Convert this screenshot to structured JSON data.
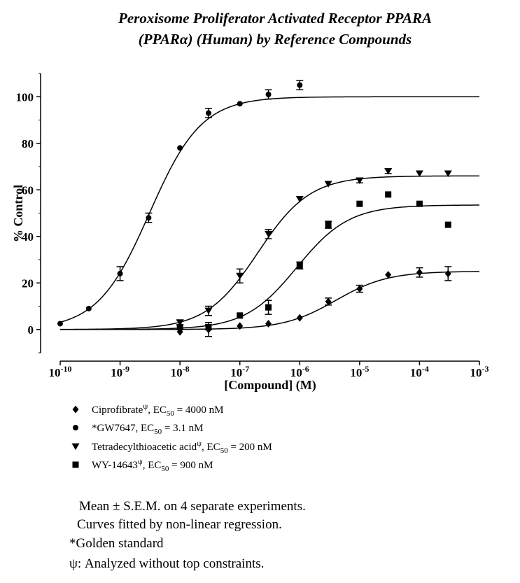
{
  "chart_data": {
    "type": "scatter",
    "title_lines": [
      "Peroxisome Proliferator Activated Receptor PPARA",
      "(PPARα) (Human) by Reference Compounds"
    ],
    "xlabel": "[Compound] (M)",
    "ylabel": "% Control",
    "x_scale": "log",
    "xlim": [
      1e-10,
      0.001
    ],
    "ylim": [
      -10,
      110
    ],
    "x_ticks": [
      {
        "base": "10",
        "exp": "-10",
        "value": 1e-10
      },
      {
        "base": "10",
        "exp": "-9",
        "value": 1e-09
      },
      {
        "base": "10",
        "exp": "-8",
        "value": 1e-08
      },
      {
        "base": "10",
        "exp": "-7",
        "value": 1e-07
      },
      {
        "base": "10",
        "exp": "-6",
        "value": 1e-06
      },
      {
        "base": "10",
        "exp": "-5",
        "value": 1e-05
      },
      {
        "base": "10",
        "exp": "-4",
        "value": 0.0001
      },
      {
        "base": "10",
        "exp": "-3",
        "value": 0.001
      }
    ],
    "y_ticks": [
      "0",
      "20",
      "40",
      "60",
      "80",
      "100"
    ],
    "legend_position": "below",
    "grid": false,
    "series": [
      {
        "name": "Ciprofibrate",
        "name_sup": "ψ",
        "ec50_label": ", EC",
        "ec50_sub": "50",
        "ec50_value": " = 4000 nM",
        "marker": "diamond",
        "ec50": 4e-06,
        "top": 25,
        "bottom": 0,
        "points": [
          {
            "x": 1e-08,
            "y": -1,
            "err": 0.5
          },
          {
            "x": 3e-08,
            "y": 0,
            "err": 3
          },
          {
            "x": 1e-07,
            "y": 1.5,
            "err": 0.5
          },
          {
            "x": 3e-07,
            "y": 2.5,
            "err": 0.5
          },
          {
            "x": 1e-06,
            "y": 5,
            "err": 0.5
          },
          {
            "x": 3e-06,
            "y": 12,
            "err": 1.5
          },
          {
            "x": 1e-05,
            "y": 17.5,
            "err": 1.5
          },
          {
            "x": 3e-05,
            "y": 23.5,
            "err": 0.5
          },
          {
            "x": 0.0001,
            "y": 24.5,
            "err": 2
          },
          {
            "x": 0.0003,
            "y": 24,
            "err": 3
          }
        ]
      },
      {
        "name": "*GW7647",
        "name_sup": "",
        "ec50_label": ", EC",
        "ec50_sub": "50",
        "ec50_value": " = 3.1 nM",
        "marker": "circle",
        "ec50": 3.1e-09,
        "top": 100,
        "bottom": 0,
        "points": [
          {
            "x": 1e-10,
            "y": 2.5,
            "err": 0.5
          },
          {
            "x": 3e-10,
            "y": 9,
            "err": 0.5
          },
          {
            "x": 1e-09,
            "y": 24,
            "err": 3
          },
          {
            "x": 3e-09,
            "y": 48,
            "err": 2
          },
          {
            "x": 1e-08,
            "y": 78,
            "err": 0.5
          },
          {
            "x": 3e-08,
            "y": 93,
            "err": 2
          },
          {
            "x": 1e-07,
            "y": 97,
            "err": 0.5
          },
          {
            "x": 3e-07,
            "y": 101,
            "err": 2
          },
          {
            "x": 1e-06,
            "y": 105,
            "err": 2
          }
        ]
      },
      {
        "name": "Tetradecylthioacetic acid",
        "name_sup": "ψ",
        "ec50_label": ", EC",
        "ec50_sub": "50",
        "ec50_value": " = 200 nM",
        "marker": "triangle-down",
        "ec50": 2e-07,
        "top": 66,
        "bottom": 0,
        "points": [
          {
            "x": 1e-08,
            "y": 3,
            "err": 1
          },
          {
            "x": 3e-08,
            "y": 8,
            "err": 2
          },
          {
            "x": 1e-07,
            "y": 23,
            "err": 3
          },
          {
            "x": 3e-07,
            "y": 41,
            "err": 2
          },
          {
            "x": 1e-06,
            "y": 56,
            "err": 0.5
          },
          {
            "x": 3e-06,
            "y": 62.5,
            "err": 0.5
          },
          {
            "x": 1e-05,
            "y": 64,
            "err": 1
          },
          {
            "x": 3e-05,
            "y": 68,
            "err": 1
          },
          {
            "x": 0.0001,
            "y": 67,
            "err": 0.5
          },
          {
            "x": 0.0003,
            "y": 67,
            "err": 0.5
          }
        ]
      },
      {
        "name": "WY-14643",
        "name_sup": "ψ",
        "ec50_label": ", EC",
        "ec50_sub": "50",
        "ec50_value": " = 900 nM",
        "marker": "square",
        "ec50": 9e-07,
        "top": 53.5,
        "bottom": 0,
        "points": [
          {
            "x": 1e-08,
            "y": 1,
            "err": 1
          },
          {
            "x": 3e-08,
            "y": 1,
            "err": 1
          },
          {
            "x": 1e-07,
            "y": 6,
            "err": 0.5
          },
          {
            "x": 3e-07,
            "y": 9.5,
            "err": 3
          },
          {
            "x": 1e-06,
            "y": 27.5,
            "err": 1.5
          },
          {
            "x": 3e-06,
            "y": 45,
            "err": 1.5
          },
          {
            "x": 1e-05,
            "y": 54,
            "err": 0.5
          },
          {
            "x": 3e-05,
            "y": 58,
            "err": 0.5
          },
          {
            "x": 0.0001,
            "y": 54,
            "err": 0.5
          },
          {
            "x": 0.0003,
            "y": 45,
            "err": 0.5
          }
        ]
      }
    ]
  },
  "notes": {
    "line1": "Mean ± S.E.M. on 4 separate experiments.",
    "line2": "Curves fitted by non-linear regression.",
    "line3": "*Golden standard",
    "line4": "ψ: Analyzed without top constraints."
  }
}
